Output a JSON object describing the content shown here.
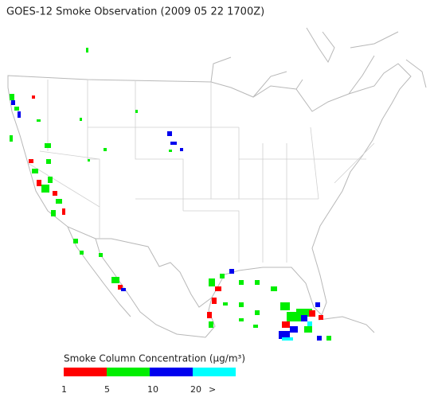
{
  "title": "GOES-12 Smoke Observation (2009 05 22  1700Z)",
  "legend": {
    "title": "Smoke Column Concentration (μg/m³)",
    "bins": [
      {
        "color": "#ff0000"
      },
      {
        "color": "#00ee00"
      },
      {
        "color": "#0000ee"
      },
      {
        "color": "#00ffff"
      }
    ],
    "labels": [
      "1",
      "5",
      "10",
      "20",
      ">"
    ]
  }
}
